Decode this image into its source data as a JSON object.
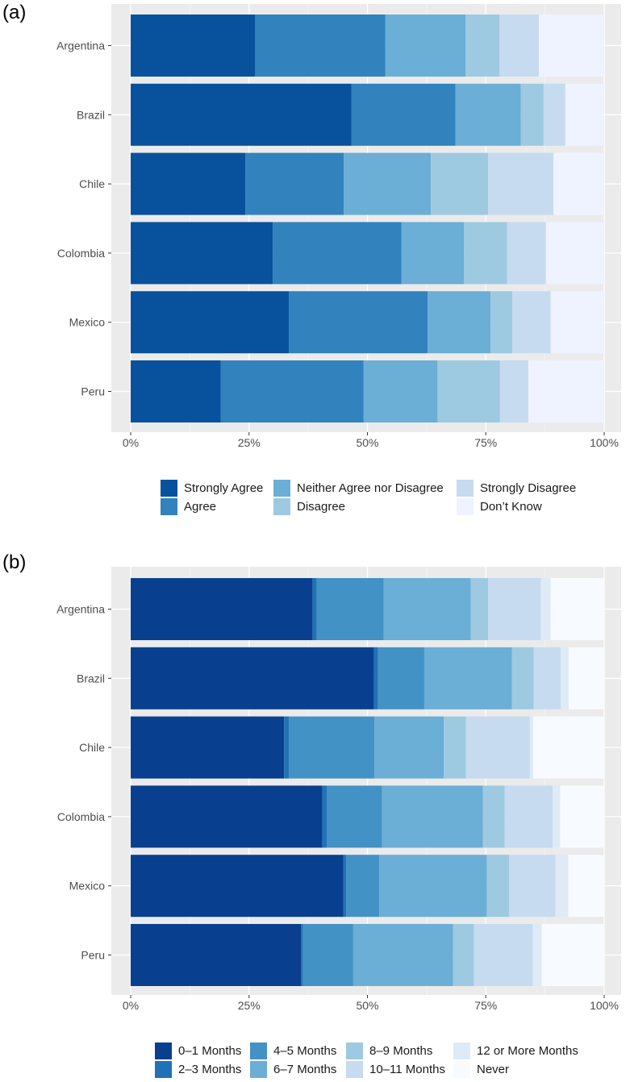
{
  "panels": [
    {
      "label": "(a)",
      "chart_data": {
        "type": "bar",
        "orientation": "horizontal",
        "stacked": "percent",
        "categories": [
          "Argentina",
          "Brazil",
          "Chile",
          "Colombia",
          "Mexico",
          "Peru"
        ],
        "xlim": [
          0,
          100
        ],
        "xticks": [
          "0%",
          "25%",
          "50%",
          "75%",
          "100%"
        ],
        "grid": true,
        "legend_position": "bottom",
        "series": [
          {
            "name": "Strongly Agree",
            "color": "#08519c",
            "values": [
              26.3,
              46.6,
              24.2,
              30.0,
              33.4,
              19.0
            ]
          },
          {
            "name": "Agree",
            "color": "#3182bd",
            "values": [
              27.5,
              22.0,
              20.8,
              27.2,
              29.3,
              30.2
            ]
          },
          {
            "name": "Neither Agree nor Disagree",
            "color": "#6baed6",
            "values": [
              16.9,
              13.8,
              18.4,
              13.2,
              13.3,
              15.6
            ]
          },
          {
            "name": "Disagree",
            "color": "#9ecae1",
            "values": [
              7.2,
              4.8,
              12.1,
              9.1,
              4.6,
              13.2
            ]
          },
          {
            "name": "Strongly Disagree",
            "color": "#c6dbef",
            "values": [
              8.3,
              4.6,
              13.8,
              8.2,
              8.1,
              6.0
            ]
          },
          {
            "name": "Don’t Know",
            "color": "#eff3ff",
            "values": [
              13.8,
              8.2,
              10.7,
              12.3,
              11.3,
              16.0
            ]
          }
        ]
      }
    },
    {
      "label": "(b)",
      "chart_data": {
        "type": "bar",
        "orientation": "horizontal",
        "stacked": "percent",
        "categories": [
          "Argentina",
          "Brazil",
          "Chile",
          "Colombia",
          "Mexico",
          "Peru"
        ],
        "xlim": [
          0,
          100
        ],
        "xticks": [
          "0%",
          "25%",
          "50%",
          "75%",
          "100%"
        ],
        "grid": true,
        "legend_position": "bottom",
        "series": [
          {
            "name": "0–1 Months",
            "color": "#08408f",
            "values": [
              38.4,
              51.4,
              32.4,
              40.5,
              44.9,
              36.0
            ]
          },
          {
            "name": "2–3 Months",
            "color": "#2171b5",
            "values": [
              0.9,
              0.8,
              1.0,
              0.9,
              0.6,
              0.4
            ]
          },
          {
            "name": "4–5 Months",
            "color": "#4292c6",
            "values": [
              14.1,
              9.8,
              18.1,
              11.7,
              7.0,
              10.6
            ]
          },
          {
            "name": "6–7 Months",
            "color": "#6baed6",
            "values": [
              18.4,
              18.5,
              14.6,
              21.3,
              22.7,
              21.1
            ]
          },
          {
            "name": "8–9 Months",
            "color": "#9ecae1",
            "values": [
              3.7,
              4.6,
              4.7,
              4.6,
              4.7,
              4.4
            ]
          },
          {
            "name": "10–11 Months",
            "color": "#c6dbef",
            "values": [
              11.1,
              5.7,
              13.5,
              10.1,
              9.8,
              12.4
            ]
          },
          {
            "name": "12 or More Months",
            "color": "#deebf7",
            "values": [
              2.1,
              1.7,
              0.7,
              1.6,
              2.7,
              1.9
            ]
          },
          {
            "name": "Never",
            "color": "#f7fbff",
            "values": [
              11.3,
              7.5,
              15.0,
              9.3,
              7.6,
              13.2
            ]
          }
        ]
      }
    }
  ]
}
